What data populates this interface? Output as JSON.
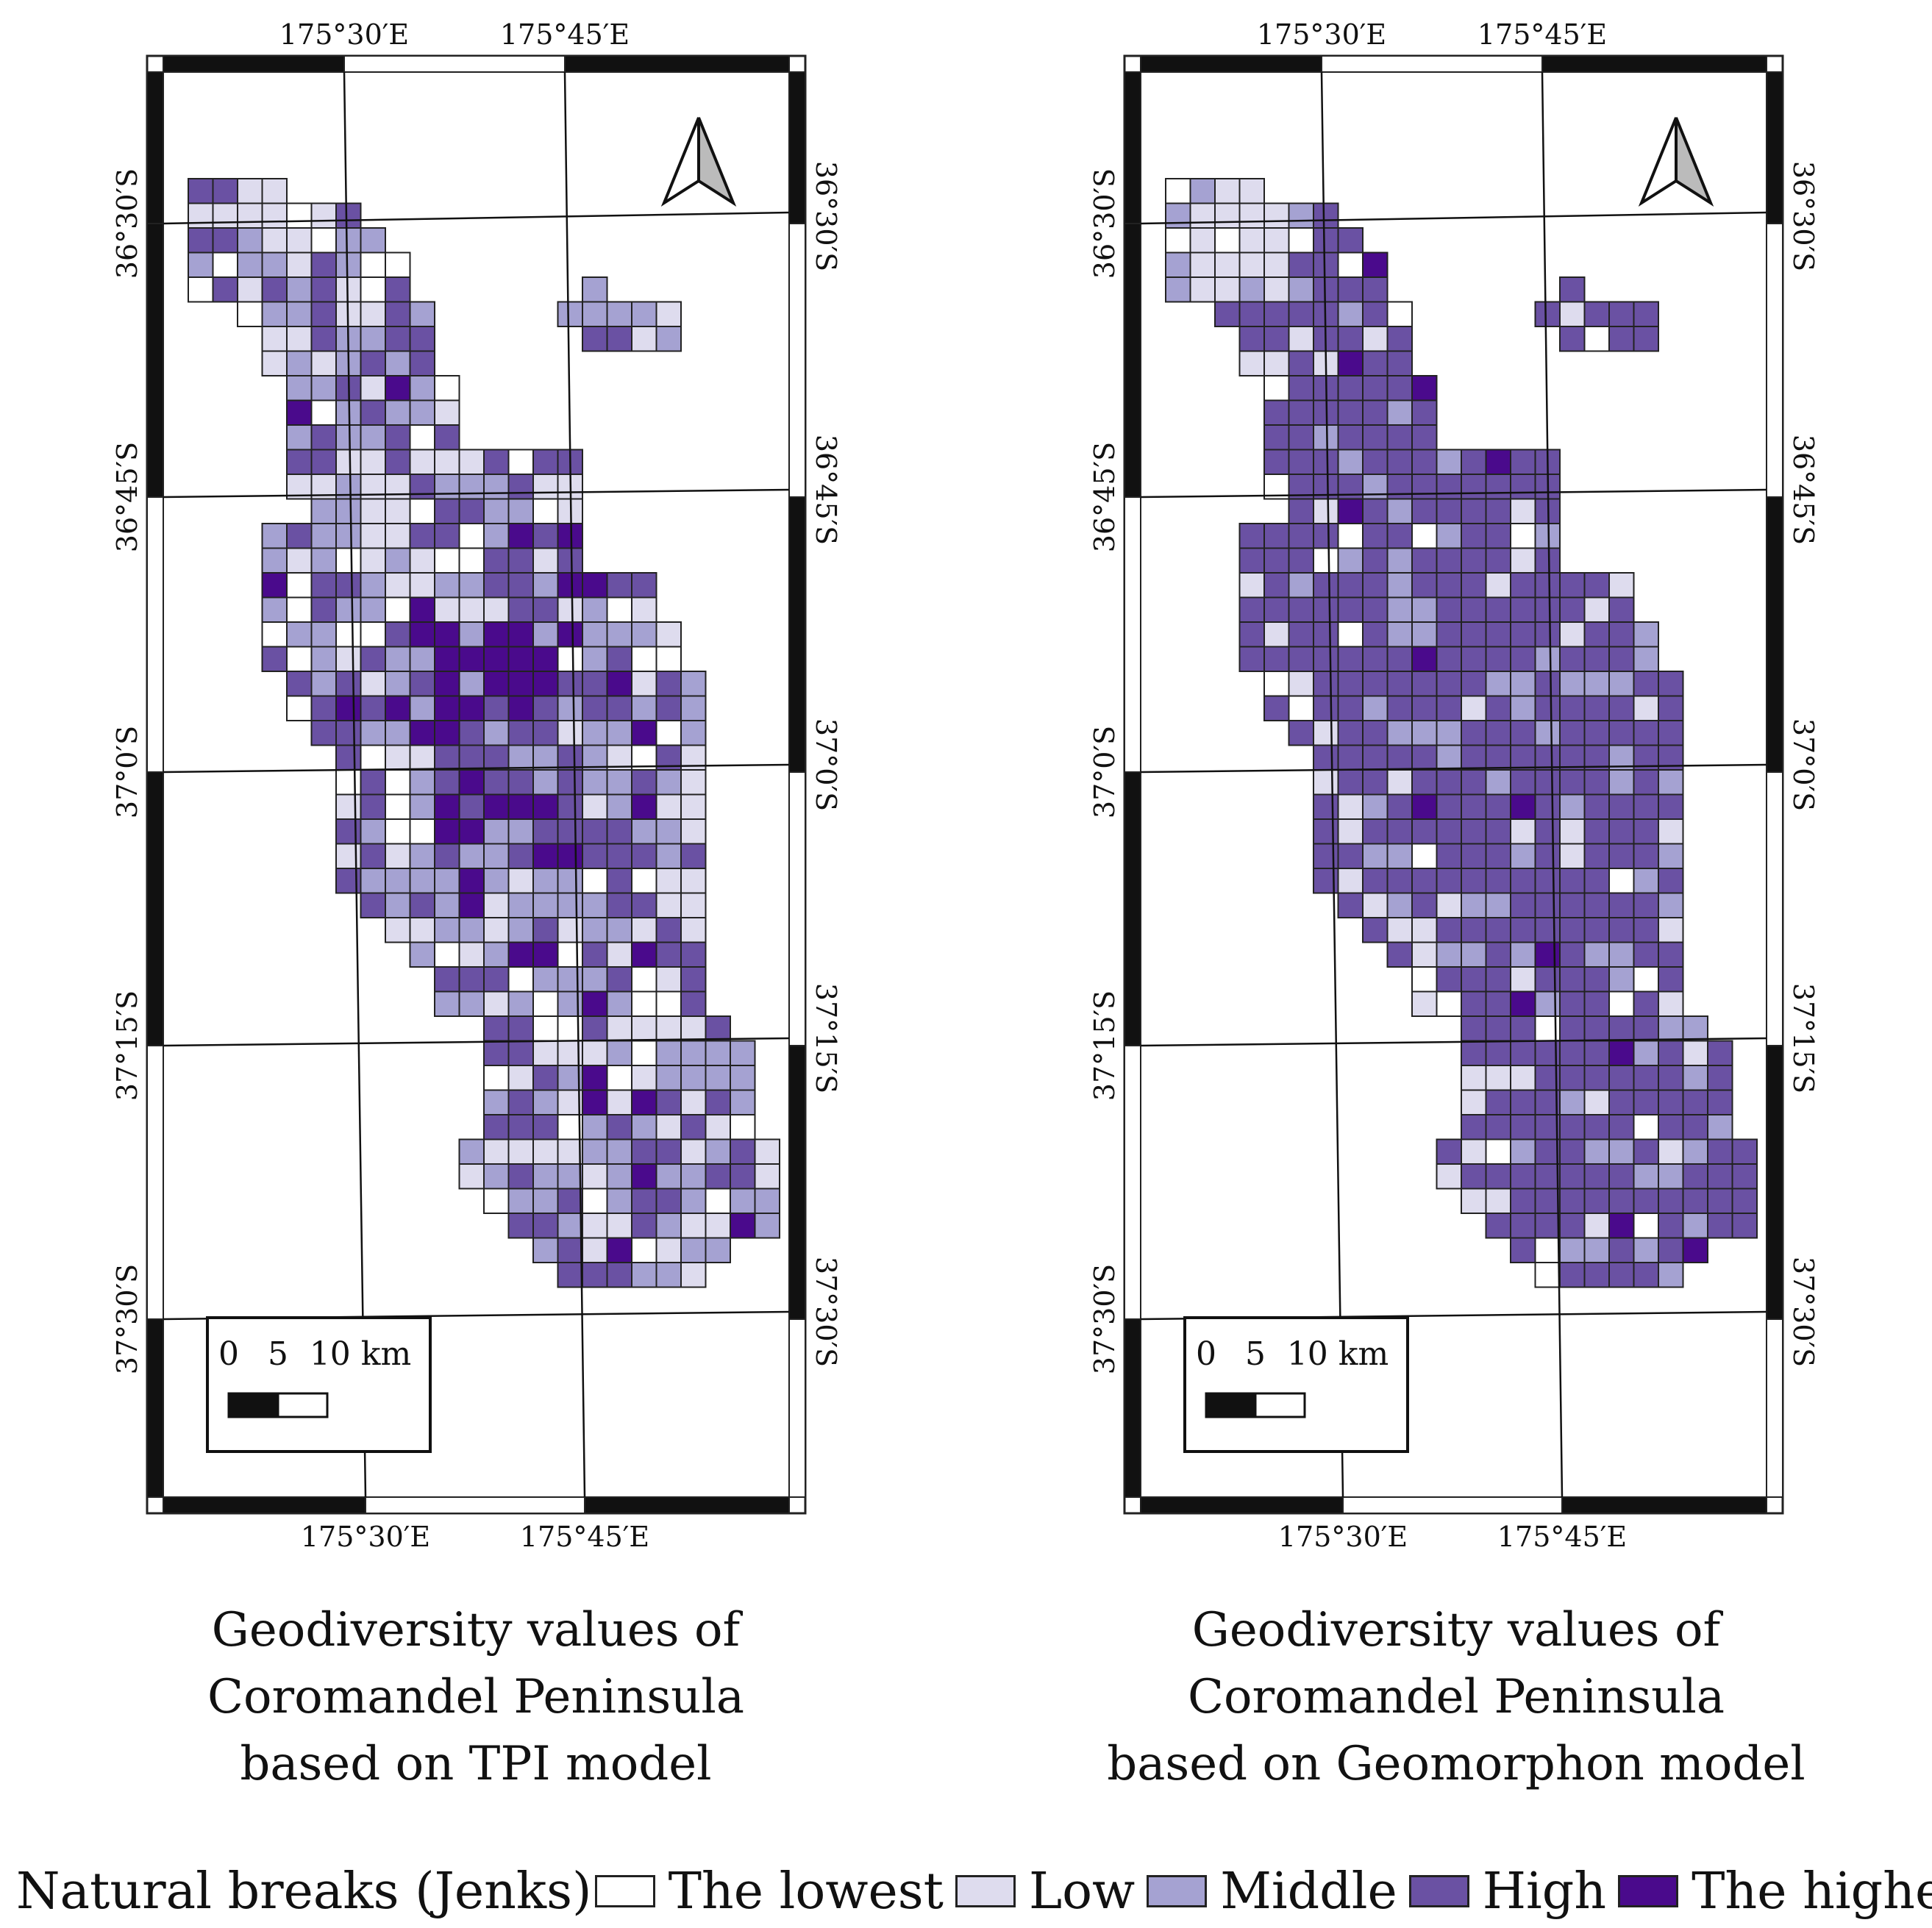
{
  "palette": {
    "lowest": "#ffffff",
    "low": "#dedcee",
    "middle": "#a5a2d2",
    "high": "#6a51a3",
    "highest": "#4a0a8c"
  },
  "maps": [
    {
      "title_lines": [
        "Geodiversity values of",
        "Coromandel Peninsula",
        "based on TPI model"
      ],
      "top_ticks": [
        "175°30′E",
        "175°45′E"
      ],
      "bottom_ticks": [
        "175°30′E",
        "175°45′E"
      ],
      "lat_ticks": [
        "36°30′S",
        "36°45′S",
        "37°0′S",
        "37°15′S",
        "37°30′S"
      ],
      "scale_labels": [
        "0",
        "5",
        "10 km"
      ],
      "north_arrow_icon": "north-arrow-icon"
    },
    {
      "title_lines": [
        "Geodiversity values of",
        "Coromandel Peninsula",
        "based on Geomorphon model"
      ],
      "top_ticks": [
        "175°30′E",
        "175°45′E"
      ],
      "bottom_ticks": [
        "175°30′E",
        "175°45′E"
      ],
      "lat_ticks": [
        "36°30′S",
        "36°45′S",
        "37°0′S",
        "37°15′S",
        "37°30′S"
      ],
      "scale_labels": [
        "0",
        "5",
        "10 km"
      ],
      "north_arrow_icon": "north-arrow-icon"
    }
  ],
  "legend": {
    "title": "Natural breaks (Jenks)",
    "items": [
      {
        "label": "The lowest",
        "color": "#ffffff"
      },
      {
        "label": "Low",
        "color": "#dedcee"
      },
      {
        "label": "Middle",
        "color": "#a5a2d2"
      },
      {
        "label": "High",
        "color": "#6a51a3"
      },
      {
        "label": "The highest",
        "color": "#4a0a8c"
      }
    ]
  }
}
